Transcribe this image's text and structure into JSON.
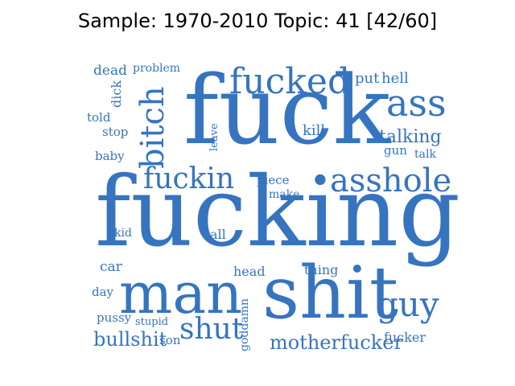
{
  "title": "Sample: 1970-2010 Topic: 41 [42/60]",
  "word_color": "#3674c0",
  "words": [
    {
      "text": "fucking",
      "orientation": "horizontal"
    },
    {
      "text": "fuck",
      "orientation": "horizontal"
    },
    {
      "text": "shit",
      "orientation": "horizontal"
    },
    {
      "text": "man",
      "orientation": "horizontal"
    },
    {
      "text": "fucked",
      "orientation": "horizontal"
    },
    {
      "text": "ass",
      "orientation": "horizontal"
    },
    {
      "text": "bitch",
      "orientation": "vertical"
    },
    {
      "text": "asshole",
      "orientation": "horizontal"
    },
    {
      "text": "fuckin",
      "orientation": "horizontal"
    },
    {
      "text": "guy",
      "orientation": "horizontal"
    },
    {
      "text": "shut",
      "orientation": "horizontal"
    },
    {
      "text": "motherfucker",
      "orientation": "horizontal"
    },
    {
      "text": "bullshit",
      "orientation": "horizontal"
    },
    {
      "text": "talking",
      "orientation": "horizontal"
    },
    {
      "text": "put",
      "orientation": "horizontal"
    },
    {
      "text": "hell",
      "orientation": "horizontal"
    },
    {
      "text": "dead",
      "orientation": "horizontal"
    },
    {
      "text": "problem",
      "orientation": "horizontal"
    },
    {
      "text": "dick",
      "orientation": "vertical"
    },
    {
      "text": "told",
      "orientation": "horizontal"
    },
    {
      "text": "stop",
      "orientation": "horizontal"
    },
    {
      "text": "baby",
      "orientation": "horizontal"
    },
    {
      "text": "leave",
      "orientation": "vertical"
    },
    {
      "text": "kill",
      "orientation": "horizontal"
    },
    {
      "text": "gun",
      "orientation": "horizontal"
    },
    {
      "text": "talk",
      "orientation": "horizontal"
    },
    {
      "text": "piece",
      "orientation": "horizontal"
    },
    {
      "text": "make",
      "orientation": "horizontal"
    },
    {
      "text": "kid",
      "orientation": "horizontal"
    },
    {
      "text": "call",
      "orientation": "horizontal"
    },
    {
      "text": "car",
      "orientation": "horizontal"
    },
    {
      "text": "thing",
      "orientation": "horizontal"
    },
    {
      "text": "head",
      "orientation": "horizontal"
    },
    {
      "text": "day",
      "orientation": "horizontal"
    },
    {
      "text": "goddamn",
      "orientation": "vertical"
    },
    {
      "text": "pussy",
      "orientation": "horizontal"
    },
    {
      "text": "stupid",
      "orientation": "horizontal"
    },
    {
      "text": "son",
      "orientation": "horizontal"
    },
    {
      "text": "fucker",
      "orientation": "horizontal"
    }
  ]
}
